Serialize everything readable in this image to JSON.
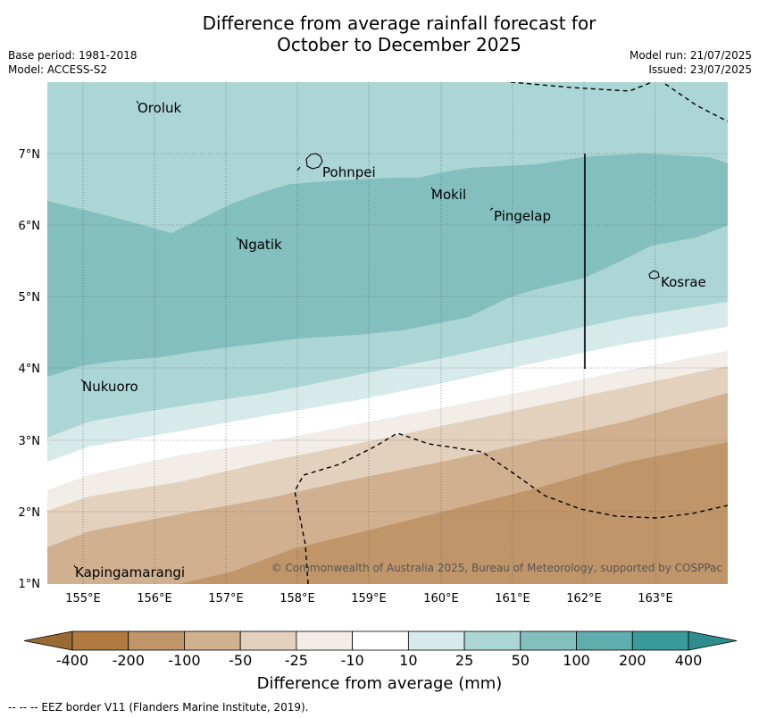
{
  "title": {
    "line1": "Difference from average rainfall forecast for",
    "line2": "October to December 2025"
  },
  "meta": {
    "base_period": "Base period: 1981-2018",
    "model": "Model: ACCESS-S2",
    "model_run": "Model run: 21/07/2025",
    "issued": "Issued: 23/07/2025"
  },
  "axes": {
    "x_ticks": [
      "155°E",
      "156°E",
      "157°E",
      "158°E",
      "159°E",
      "160°E",
      "161°E",
      "162°E",
      "163°E"
    ],
    "y_ticks": [
      "7°N",
      "6°N",
      "5°N",
      "4°N",
      "3°N",
      "2°N",
      "1°N"
    ]
  },
  "places": [
    {
      "name": "Oroluk"
    },
    {
      "name": "Pohnpei"
    },
    {
      "name": "Mokil"
    },
    {
      "name": "Pingelap"
    },
    {
      "name": "Ngatik"
    },
    {
      "name": "Kosrae"
    },
    {
      "name": "Nukuoro"
    },
    {
      "name": "Kapingamarangi"
    }
  ],
  "copyright": "© Commonwealth of Australia 2025, Bureau of Meteorology, supported by COSPPac",
  "colorbar": {
    "title": "Difference from average (mm)",
    "ticks": [
      "-400",
      "-200",
      "-100",
      "-50",
      "-25",
      "-10",
      "10",
      "25",
      "50",
      "100",
      "200",
      "400"
    ],
    "colors": [
      "#b07a40",
      "#c0956a",
      "#d1b090",
      "#e3d0bd",
      "#f2ede6",
      "#ffffff",
      "#d7eaea",
      "#acd5d5",
      "#83bfbf",
      "#5fadad",
      "#3a9a9a"
    ],
    "under_color": "#9a6a33",
    "over_color": "#2f8d8d"
  },
  "footnote": "--  --  -- EEZ border V11 (Flanders Marine Institute, 2019)."
}
